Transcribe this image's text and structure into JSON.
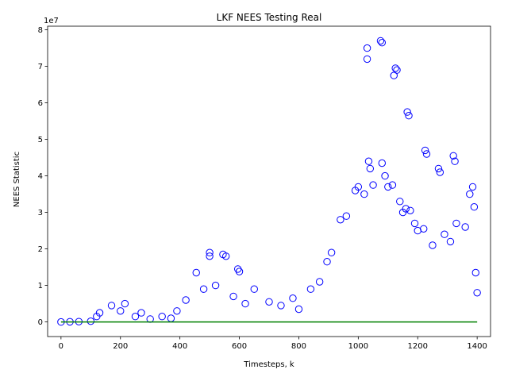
{
  "chart_data": {
    "type": "scatter",
    "title": "LKF NEES Testing Real",
    "xlabel": "Timesteps, k",
    "ylabel": "NEES Statistic",
    "offset_text": "1e7",
    "xlim": [
      -45,
      1445
    ],
    "ylim": [
      -4000000,
      81000000
    ],
    "xticks": [
      0,
      200,
      400,
      600,
      800,
      1000,
      1200,
      1400
    ],
    "xtick_labels": [
      "0",
      "200",
      "400",
      "600",
      "800",
      "1000",
      "1200",
      "1400"
    ],
    "yticks": [
      0,
      10000000,
      20000000,
      30000000,
      40000000,
      50000000,
      60000000,
      70000000,
      80000000
    ],
    "ytick_labels": [
      "0",
      "1",
      "2",
      "3",
      "4",
      "5",
      "6",
      "7",
      "8"
    ],
    "grid": false,
    "marker_color": "#0000ff",
    "line_color": "#008000",
    "series": [
      {
        "marker": "open-circle",
        "points": [
          [
            0,
            0
          ],
          [
            30,
            50000
          ],
          [
            60,
            100000
          ],
          [
            100,
            200000
          ],
          [
            120,
            1500000
          ],
          [
            130,
            2500000
          ],
          [
            170,
            4500000
          ],
          [
            200,
            3000000
          ],
          [
            215,
            5000000
          ],
          [
            250,
            1500000
          ],
          [
            270,
            2500000
          ],
          [
            300,
            800000
          ],
          [
            340,
            1500000
          ],
          [
            370,
            1000000
          ],
          [
            390,
            3000000
          ],
          [
            420,
            6000000
          ],
          [
            455,
            13500000
          ],
          [
            480,
            9000000
          ],
          [
            500,
            19000000
          ],
          [
            500,
            18000000
          ],
          [
            520,
            10000000
          ],
          [
            545,
            18500000
          ],
          [
            555,
            18000000
          ],
          [
            580,
            7000000
          ],
          [
            595,
            14500000
          ],
          [
            600,
            13800000
          ],
          [
            620,
            5000000
          ],
          [
            650,
            9000000
          ],
          [
            700,
            5500000
          ],
          [
            740,
            4500000
          ],
          [
            780,
            6500000
          ],
          [
            800,
            3500000
          ],
          [
            840,
            9000000
          ],
          [
            870,
            11000000
          ],
          [
            895,
            16500000
          ],
          [
            910,
            19000000
          ],
          [
            940,
            28000000
          ],
          [
            960,
            29000000
          ],
          [
            990,
            36000000
          ],
          [
            1000,
            37000000
          ],
          [
            1020,
            35000000
          ],
          [
            1030,
            72000000
          ],
          [
            1030,
            75000000
          ],
          [
            1035,
            44000000
          ],
          [
            1040,
            42000000
          ],
          [
            1050,
            37500000
          ],
          [
            1075,
            77000000
          ],
          [
            1080,
            76500000
          ],
          [
            1080,
            43500000
          ],
          [
            1090,
            40000000
          ],
          [
            1100,
            37000000
          ],
          [
            1115,
            37500000
          ],
          [
            1120,
            67500000
          ],
          [
            1125,
            69500000
          ],
          [
            1130,
            69000000
          ],
          [
            1140,
            33000000
          ],
          [
            1150,
            30000000
          ],
          [
            1160,
            31000000
          ],
          [
            1165,
            57500000
          ],
          [
            1170,
            56500000
          ],
          [
            1175,
            30500000
          ],
          [
            1190,
            27000000
          ],
          [
            1200,
            25000000
          ],
          [
            1220,
            25500000
          ],
          [
            1225,
            47000000
          ],
          [
            1230,
            46000000
          ],
          [
            1250,
            21000000
          ],
          [
            1270,
            42000000
          ],
          [
            1275,
            41000000
          ],
          [
            1290,
            24000000
          ],
          [
            1310,
            22000000
          ],
          [
            1320,
            45500000
          ],
          [
            1325,
            44000000
          ],
          [
            1330,
            27000000
          ],
          [
            1360,
            26000000
          ],
          [
            1375,
            35000000
          ],
          [
            1385,
            37000000
          ],
          [
            1390,
            31500000
          ],
          [
            1395,
            13500000
          ],
          [
            1400,
            8000000
          ]
        ]
      }
    ],
    "reference_line": {
      "type": "line",
      "points": [
        [
          0,
          0
        ],
        [
          1400,
          0
        ]
      ]
    }
  }
}
